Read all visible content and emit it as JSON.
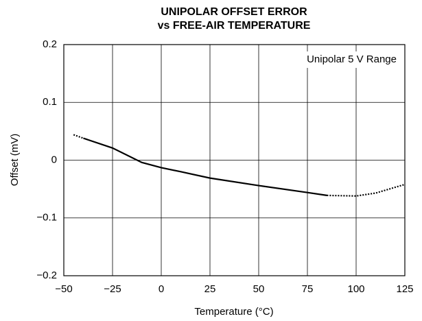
{
  "chart_data": {
    "type": "line",
    "title": [
      "UNIPOLAR OFFSET ERROR",
      "vs FREE-AIR TEMPERATURE"
    ],
    "xlabel": "Temperature (°C)",
    "ylabel": "Offset (mV)",
    "annotation": "Unipolar 5 V Range",
    "x": [
      -45,
      -40,
      -25,
      -10,
      0,
      10,
      25,
      50,
      75,
      85,
      100,
      110,
      125
    ],
    "series": [
      {
        "color": "#000000",
        "style": "dotted",
        "values": [
          0.044,
          0.038,
          null,
          null,
          null,
          null,
          null,
          null,
          null,
          -0.061,
          -0.062,
          -0.057,
          -0.042
        ]
      },
      {
        "color": "#000000",
        "style": "solid",
        "values": [
          null,
          0.038,
          0.021,
          -0.004,
          -0.013,
          -0.02,
          -0.031,
          -0.044,
          -0.056,
          -0.061,
          null,
          null,
          null
        ]
      }
    ],
    "xlim": [
      -50,
      125
    ],
    "xticks": [
      {
        "value": -50,
        "label": "−50"
      },
      {
        "value": -25,
        "label": "−25"
      },
      0,
      25,
      50,
      75,
      100,
      125
    ],
    "ylim": [
      -0.2,
      0.2
    ],
    "yticks": [
      {
        "value": -0.2,
        "label": "−0.2"
      },
      {
        "value": -0.1,
        "label": "−0.1"
      },
      0,
      0.1,
      0.2
    ],
    "grid": true
  }
}
